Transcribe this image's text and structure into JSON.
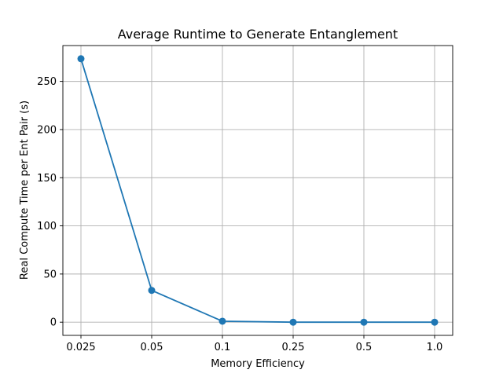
{
  "chart_data": {
    "type": "line",
    "title": "Average Runtime to Generate Entanglement",
    "xlabel": "Memory Efficiency",
    "ylabel": "Real Compute Time per Ent Pair (s)",
    "categories": [
      "0.025",
      "0.05",
      "0.1",
      "0.25",
      "0.5",
      "1.0"
    ],
    "series": [
      {
        "values": [
          273.5,
          33,
          1,
          0,
          0,
          0
        ]
      }
    ],
    "ylim": [
      -13.7,
      287.2
    ],
    "yticks": [
      0,
      50,
      100,
      150,
      200,
      250
    ],
    "grid": true,
    "line_color": "#1f77b4"
  }
}
